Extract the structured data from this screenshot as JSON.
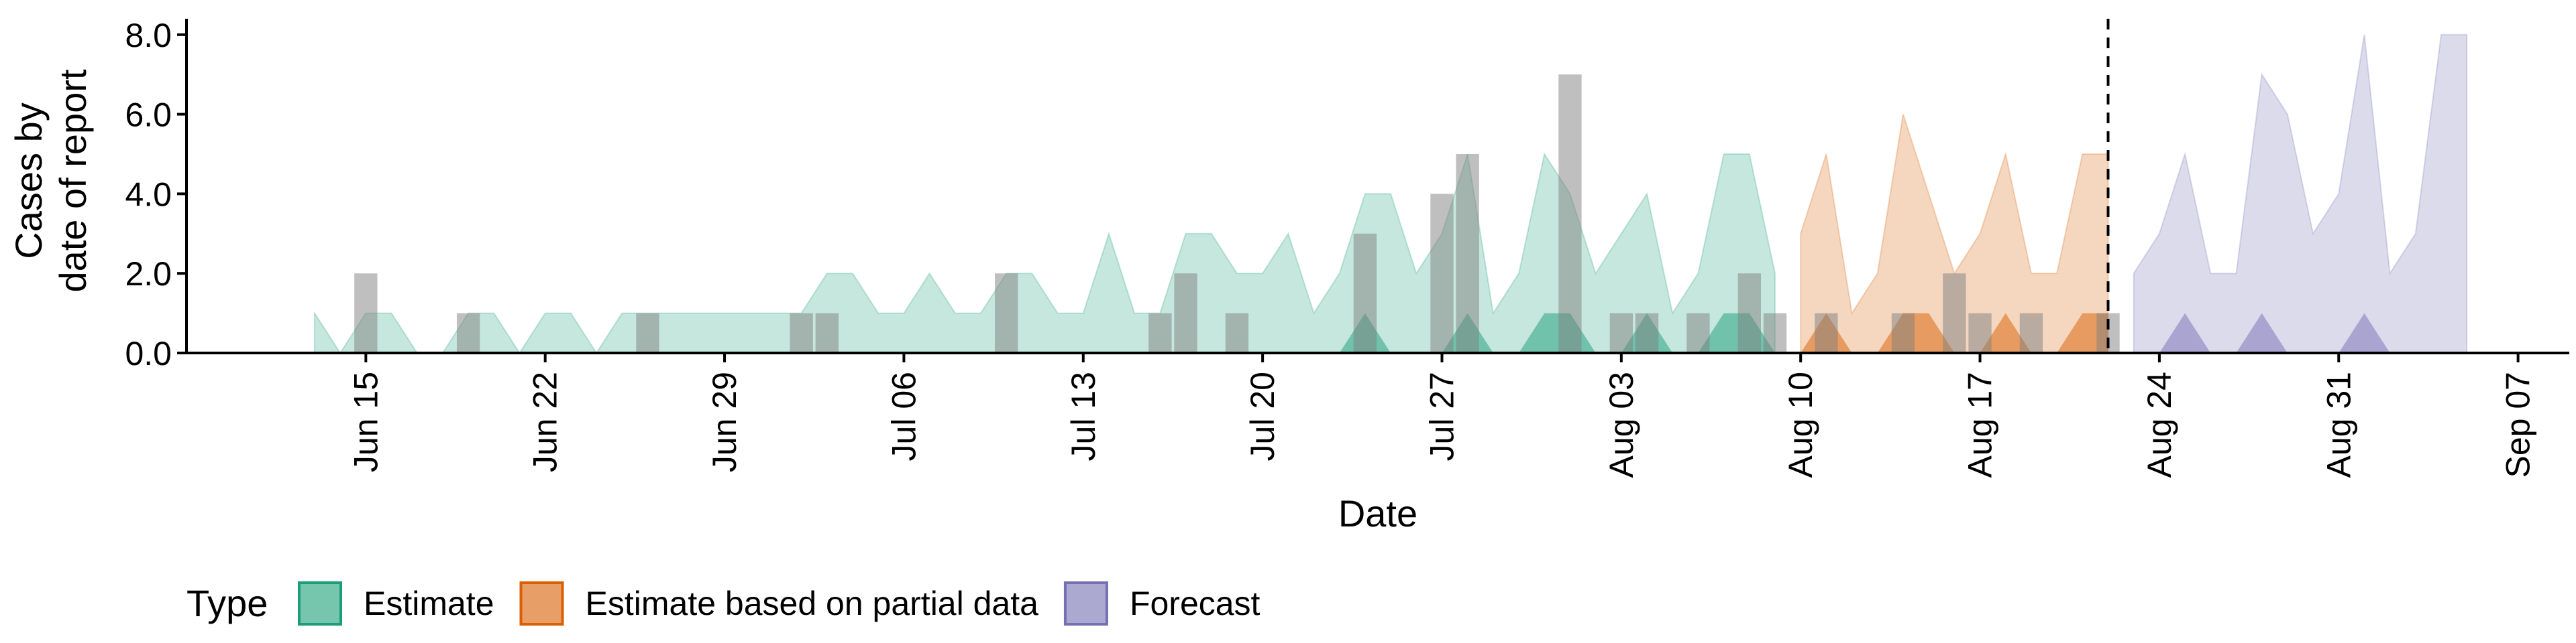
{
  "chart_data": {
    "type": "area",
    "xlabel": "Date",
    "ylabel_lines": [
      "Cases by",
      "date of report"
    ],
    "ylim": [
      0,
      8.4
    ],
    "xlim": [
      "2020-06-08",
      "2020-09-09"
    ],
    "yticks": [
      0,
      2,
      4,
      6,
      8
    ],
    "ytick_labels": [
      "0.0",
      "2.0",
      "4.0",
      "6.0",
      "8.0"
    ],
    "xticks": [
      "2020-06-15",
      "2020-06-22",
      "2020-06-29",
      "2020-07-06",
      "2020-07-13",
      "2020-07-20",
      "2020-07-27",
      "2020-08-03",
      "2020-08-10",
      "2020-08-17",
      "2020-08-24",
      "2020-08-31",
      "2020-09-07"
    ],
    "xtick_labels": [
      "Jun 15",
      "Jun 22",
      "Jun 29",
      "Jul 06",
      "Jul 13",
      "Jul 20",
      "Jul 27",
      "Aug 03",
      "Aug 10",
      "Aug 17",
      "Aug 24",
      "Aug 31",
      "Sep 07"
    ],
    "forecast_date": "2020-08-22",
    "grid": false,
    "legend": {
      "position": "bottom",
      "title": "Type",
      "entries": [
        {
          "label": "Estimate",
          "fill": "#1B9E77",
          "stroke": "#1B9E77"
        },
        {
          "label": "Estimate based on partial data",
          "fill": "#D95F02",
          "stroke": "#D95F02"
        },
        {
          "label": "Forecast",
          "fill": "#7570B3",
          "stroke": "#7570B3"
        }
      ]
    },
    "series": [
      {
        "type": "Estimate",
        "color": "#1B9E77",
        "dates": [
          "2020-06-13",
          "2020-06-14",
          "2020-06-15",
          "2020-06-16",
          "2020-06-17",
          "2020-06-18",
          "2020-06-19",
          "2020-06-20",
          "2020-06-21",
          "2020-06-22",
          "2020-06-23",
          "2020-06-24",
          "2020-06-25",
          "2020-06-26",
          "2020-06-27",
          "2020-06-28",
          "2020-06-29",
          "2020-06-30",
          "2020-07-01",
          "2020-07-02",
          "2020-07-03",
          "2020-07-04",
          "2020-07-05",
          "2020-07-06",
          "2020-07-07",
          "2020-07-08",
          "2020-07-09",
          "2020-07-10",
          "2020-07-11",
          "2020-07-12",
          "2020-07-13",
          "2020-07-14",
          "2020-07-15",
          "2020-07-16",
          "2020-07-17",
          "2020-07-18",
          "2020-07-19",
          "2020-07-20",
          "2020-07-21",
          "2020-07-22",
          "2020-07-23",
          "2020-07-24",
          "2020-07-25",
          "2020-07-26",
          "2020-07-27",
          "2020-07-28",
          "2020-07-29",
          "2020-07-30",
          "2020-07-31",
          "2020-08-01",
          "2020-08-02",
          "2020-08-03",
          "2020-08-04",
          "2020-08-05",
          "2020-08-06",
          "2020-08-07",
          "2020-08-08",
          "2020-08-09"
        ],
        "upper": [
          1,
          0,
          1,
          1,
          0,
          0,
          1,
          1,
          0,
          1,
          1,
          0,
          1,
          1,
          1,
          1,
          1,
          1,
          1,
          1,
          2,
          2,
          1,
          1,
          2,
          1,
          1,
          2,
          2,
          1,
          1,
          3,
          1,
          1,
          3,
          3,
          2,
          2,
          3,
          1,
          2,
          4,
          4,
          2,
          3,
          5,
          1,
          2,
          5,
          4,
          2,
          3,
          4,
          1,
          2,
          5,
          5,
          2
        ],
        "lower": [
          0,
          0,
          0,
          0,
          0,
          0,
          0,
          0,
          0,
          0,
          0,
          0,
          0,
          0,
          0,
          0,
          0,
          0,
          0,
          0,
          0,
          0,
          0,
          0,
          0,
          0,
          0,
          0,
          0,
          0,
          0,
          0,
          0,
          0,
          0,
          0,
          0,
          0,
          0,
          0,
          0,
          0,
          0,
          0,
          0,
          0,
          0,
          0,
          0,
          0,
          0,
          0,
          0,
          0,
          0,
          0,
          0,
          0
        ],
        "inner_upper": [
          0,
          0,
          0,
          0,
          0,
          0,
          0,
          0,
          0,
          0,
          0,
          0,
          0,
          0,
          0,
          0,
          0,
          0,
          0,
          0,
          0,
          0,
          0,
          0,
          0,
          0,
          0,
          0,
          0,
          0,
          0,
          0,
          0,
          0,
          0,
          0,
          0,
          0,
          0,
          0,
          0,
          1,
          0,
          0,
          0,
          1,
          0,
          0,
          1,
          1,
          0,
          0,
          1,
          0,
          0,
          1,
          1,
          0
        ]
      },
      {
        "type": "Estimate based on partial data",
        "color": "#D95F02",
        "dates": [
          "2020-08-10",
          "2020-08-11",
          "2020-08-12",
          "2020-08-13",
          "2020-08-14",
          "2020-08-15",
          "2020-08-16",
          "2020-08-17",
          "2020-08-18",
          "2020-08-19",
          "2020-08-20",
          "2020-08-21",
          "2020-08-22"
        ],
        "upper": [
          3,
          5,
          1,
          2,
          6,
          4,
          2,
          3,
          5,
          2,
          2,
          5,
          5
        ],
        "lower": [
          0,
          0,
          0,
          0,
          0,
          0,
          0,
          0,
          0,
          0,
          0,
          0,
          0
        ],
        "inner_upper": [
          0,
          1,
          0,
          0,
          1,
          1,
          0,
          0,
          1,
          0,
          0,
          1,
          1
        ]
      },
      {
        "type": "Forecast",
        "color": "#7570B3",
        "dates": [
          "2020-08-23",
          "2020-08-24",
          "2020-08-25",
          "2020-08-26",
          "2020-08-27",
          "2020-08-28",
          "2020-08-29",
          "2020-08-30",
          "2020-08-31",
          "2020-09-01",
          "2020-09-02",
          "2020-09-03",
          "2020-09-04",
          "2020-09-05"
        ],
        "upper": [
          2,
          3,
          5,
          2,
          2,
          7,
          6,
          3,
          4,
          8,
          2,
          3,
          8,
          8
        ],
        "lower": [
          0,
          0,
          0,
          0,
          0,
          0,
          0,
          0,
          0,
          0,
          0,
          0,
          0,
          0
        ],
        "inner_upper": [
          0,
          0,
          1,
          0,
          0,
          1,
          0,
          0,
          0,
          1,
          0,
          0,
          0,
          0
        ]
      }
    ],
    "reported_cases": {
      "color": "#808080",
      "dates": [
        "2020-06-15",
        "2020-06-19",
        "2020-06-26",
        "2020-07-02",
        "2020-07-03",
        "2020-07-10",
        "2020-07-16",
        "2020-07-17",
        "2020-07-19",
        "2020-07-24",
        "2020-07-27",
        "2020-07-28",
        "2020-08-01",
        "2020-08-03",
        "2020-08-04",
        "2020-08-06",
        "2020-08-08",
        "2020-08-09",
        "2020-08-11",
        "2020-08-14",
        "2020-08-16",
        "2020-08-17",
        "2020-08-19",
        "2020-08-22"
      ],
      "values": [
        2,
        1,
        1,
        1,
        1,
        2,
        1,
        2,
        1,
        3,
        4,
        5,
        7,
        1,
        1,
        1,
        2,
        1,
        1,
        1,
        2,
        1,
        1,
        1
      ]
    }
  }
}
